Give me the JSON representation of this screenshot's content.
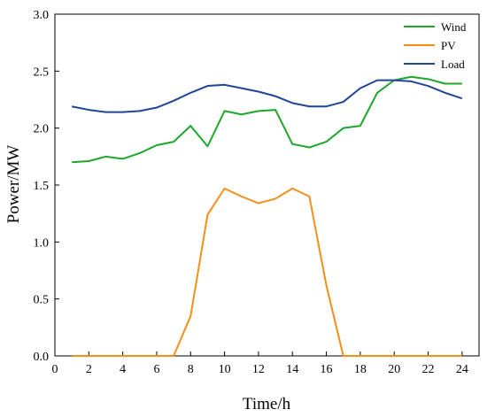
{
  "chart_data": {
    "type": "line",
    "xlabel": "Time/h",
    "ylabel": "Power/MW",
    "xlim": [
      0,
      25
    ],
    "ylim": [
      0.0,
      3.0
    ],
    "xticks": [
      0,
      2,
      4,
      6,
      8,
      10,
      12,
      14,
      16,
      18,
      20,
      22,
      24
    ],
    "yticks": [
      "0.0",
      "0.5",
      "1.0",
      "1.5",
      "2.0",
      "2.5",
      "3.0"
    ],
    "grid": false,
    "legend_position": "top-right",
    "x": [
      1,
      2,
      3,
      4,
      5,
      6,
      7,
      8,
      9,
      10,
      11,
      12,
      13,
      14,
      15,
      16,
      17,
      18,
      19,
      20,
      21,
      22,
      23,
      24
    ],
    "series": [
      {
        "name": "Wind",
        "color": "#1ca72b",
        "values": [
          1.7,
          1.71,
          1.75,
          1.73,
          1.78,
          1.85,
          1.88,
          2.02,
          1.84,
          2.15,
          2.12,
          2.15,
          2.16,
          1.86,
          1.83,
          1.88,
          2.0,
          2.02,
          2.31,
          2.42,
          2.45,
          2.43,
          2.39,
          2.39
        ]
      },
      {
        "name": "PV",
        "color": "#f58e17",
        "values": [
          0.0,
          0.0,
          0.0,
          0.0,
          0.0,
          0.0,
          0.0,
          0.35,
          1.24,
          1.47,
          1.4,
          1.34,
          1.38,
          1.47,
          1.4,
          0.62,
          0.0,
          0.0,
          0.0,
          0.0,
          0.0,
          0.0,
          0.0,
          0.0
        ]
      },
      {
        "name": "Load",
        "color": "#1f4596",
        "values": [
          2.19,
          2.16,
          2.14,
          2.14,
          2.15,
          2.18,
          2.24,
          2.31,
          2.37,
          2.38,
          2.35,
          2.32,
          2.28,
          2.22,
          2.19,
          2.19,
          2.23,
          2.35,
          2.42,
          2.42,
          2.41,
          2.37,
          2.31,
          2.26
        ]
      }
    ]
  }
}
